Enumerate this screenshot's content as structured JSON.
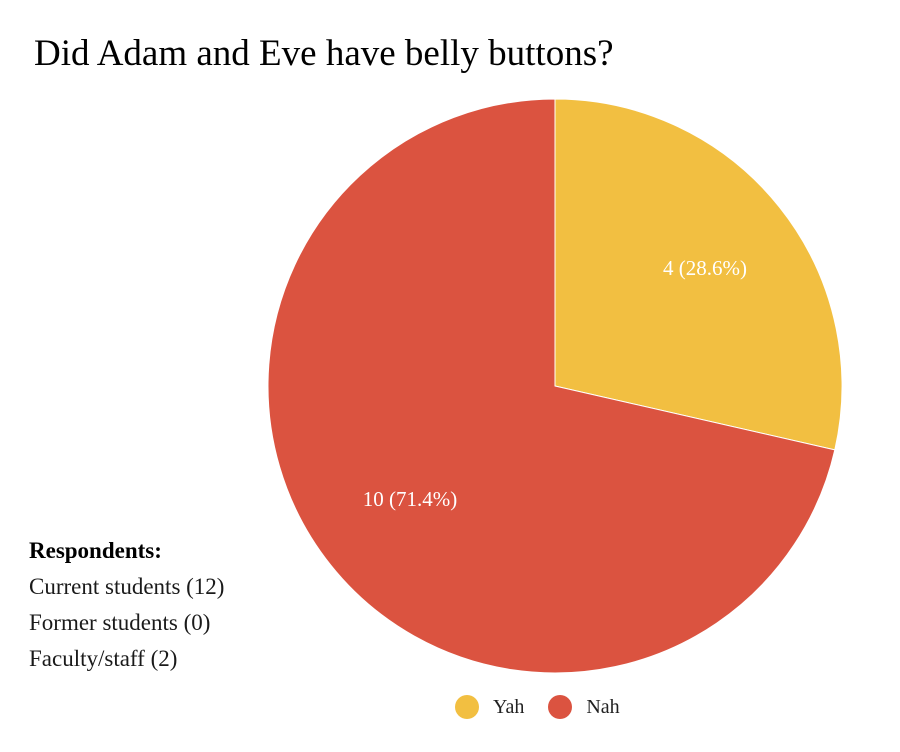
{
  "chart_data": {
    "type": "pie",
    "title": "Did Adam and Eve have belly buttons?",
    "slices": [
      {
        "name": "Yah",
        "value": 4,
        "label": "4 (28.6%)",
        "color": "#F2BF41"
      },
      {
        "name": "Nah",
        "value": 10,
        "label": "10 (71.4%)",
        "color": "#DB5340"
      }
    ],
    "legend_position": "bottom"
  },
  "respondents": {
    "heading": "Respondents:",
    "items": [
      "Current students (12)",
      "Former students (0)",
      "Faculty/staff (2)"
    ]
  }
}
